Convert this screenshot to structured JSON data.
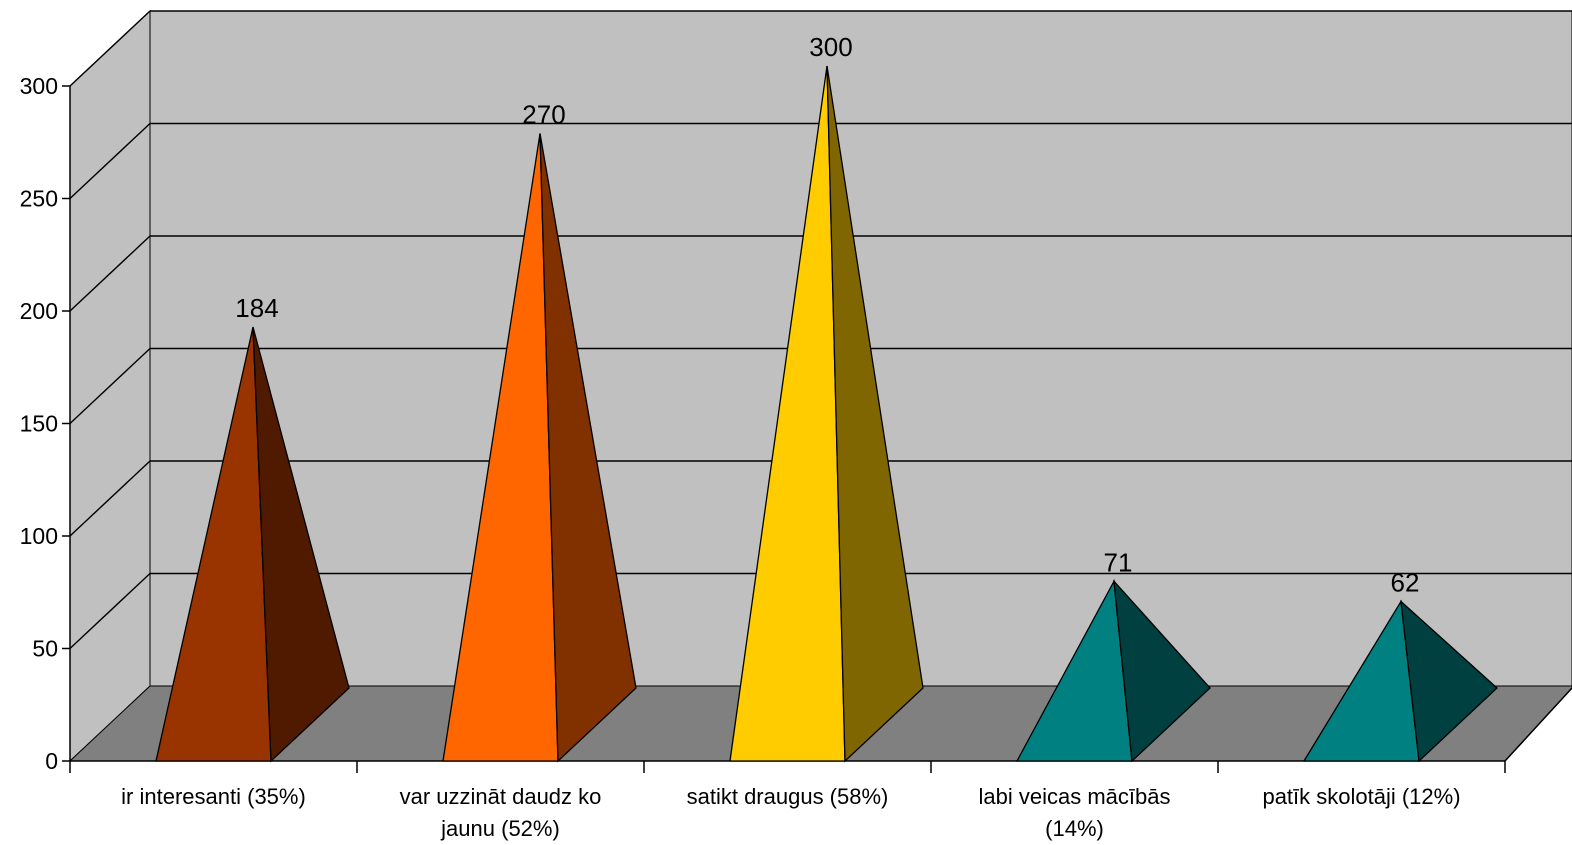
{
  "chart_data": {
    "type": "bar",
    "style": "3d-pyramid",
    "categories": [
      [
        "ir interesanti (35%)"
      ],
      [
        "var uzzināt daudz ko",
        "jaunu (52%)"
      ],
      [
        "satikt draugus (58%)"
      ],
      [
        "labi veicas mācībās",
        "(14%)"
      ],
      [
        "patīk skolotāji (12%)"
      ]
    ],
    "values": [
      184,
      270,
      300,
      71,
      62
    ],
    "value_labels": [
      "184",
      "270",
      "300",
      "71",
      "62"
    ],
    "colors": [
      {
        "front": "#993300",
        "side": "#4f1a00"
      },
      {
        "front": "#ff6600",
        "side": "#813100"
      },
      {
        "front": "#ffcc00",
        "side": "#806600"
      },
      {
        "front": "#008080",
        "side": "#004040"
      },
      {
        "front": "#008080",
        "side": "#004040"
      }
    ],
    "ylim": [
      0,
      300
    ],
    "yticks": [
      "0",
      "50",
      "100",
      "150",
      "200",
      "250",
      "300"
    ],
    "wall_color": "#c0c0c0",
    "floor_color": "#808080",
    "grid": true,
    "legend": "none"
  }
}
